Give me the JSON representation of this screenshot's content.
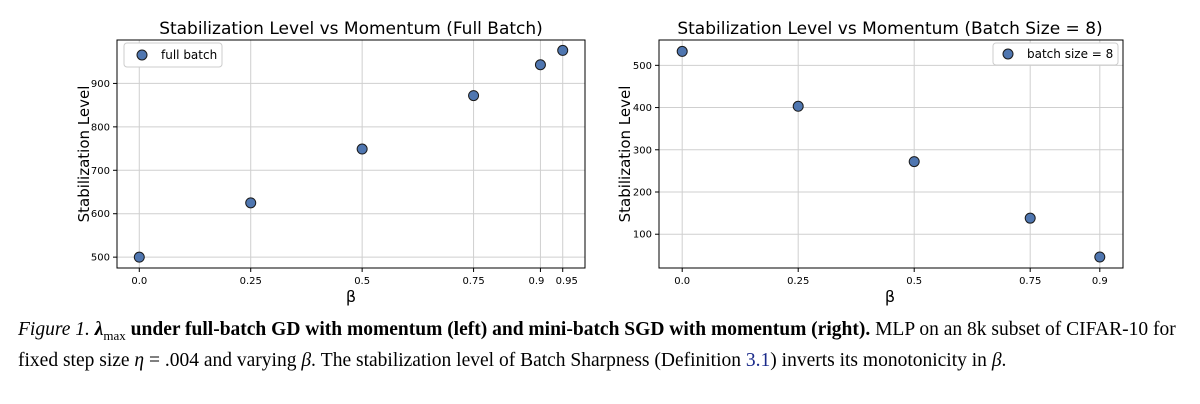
{
  "chart_data": [
    {
      "type": "scatter",
      "title": "Stabilization Level vs Momentum (Full Batch)",
      "xlabel": "β",
      "ylabel": "Stabilization Level",
      "xlim": [
        -0.05,
        1.0
      ],
      "ylim": [
        475,
        1000
      ],
      "xticks": [
        0.0,
        0.25,
        0.5,
        0.75,
        0.9,
        0.95
      ],
      "xtick_labels": [
        "0.0",
        "0.25",
        "0.5",
        "0.75",
        "0.9",
        "0.95"
      ],
      "yticks": [
        500,
        600,
        700,
        800,
        900
      ],
      "ytick_labels": [
        "500",
        "600",
        "700",
        "800",
        "900"
      ],
      "grid": true,
      "legend_position": "top-left",
      "marker_color": "#4f76b0",
      "series": [
        {
          "name": "full batch",
          "x": [
            0.0,
            0.25,
            0.5,
            0.75,
            0.9,
            0.95
          ],
          "y": [
            500,
            625,
            749,
            872,
            943,
            976
          ]
        }
      ]
    },
    {
      "type": "scatter",
      "title": "Stabilization Level vs Momentum (Batch Size = 8)",
      "xlabel": "β",
      "ylabel": "Stabilization Level",
      "xlim": [
        -0.05,
        0.95
      ],
      "ylim": [
        20,
        560
      ],
      "xticks": [
        0.0,
        0.25,
        0.5,
        0.75,
        0.9
      ],
      "xtick_labels": [
        "0.0",
        "0.25",
        "0.5",
        "0.75",
        "0.9"
      ],
      "yticks": [
        100,
        200,
        300,
        400,
        500
      ],
      "ytick_labels": [
        "100",
        "200",
        "300",
        "400",
        "500"
      ],
      "grid": true,
      "legend_position": "top-right",
      "marker_color": "#4f76b0",
      "series": [
        {
          "name": "batch size = 8",
          "x": [
            0.0,
            0.25,
            0.5,
            0.75,
            0.9
          ],
          "y": [
            533,
            403,
            272,
            138,
            46
          ]
        }
      ]
    }
  ],
  "caption": {
    "label": "Figure 1.",
    "bold_intro_symbol": "λ",
    "bold_intro_subscript": "max",
    "bold_intro": " under full-batch GD with momentum (left) and mini-batch SGD with momentum (right).",
    "text_1": " MLP on an 8k subset of CIFAR-10 for fixed step size ",
    "eta_symbol": "η",
    "text_2": " = .004 and varying ",
    "beta_symbol": "β",
    "text_3": ". The stabilization level of Batch Sharpness (Definition ",
    "ref": "3.1",
    "text_4": ") inverts its monotonicity in ",
    "text_5": "."
  }
}
